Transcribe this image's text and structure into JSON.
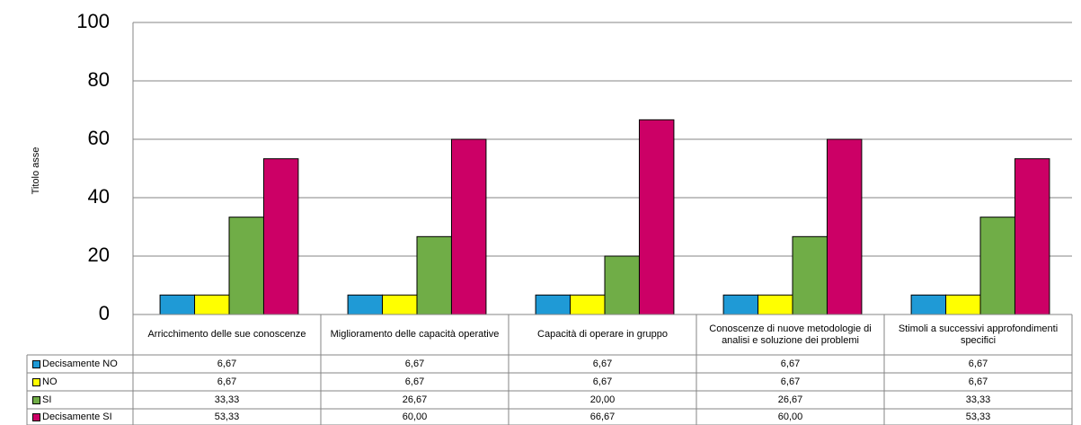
{
  "chart_data": {
    "type": "bar",
    "y_label": "Titolo asse",
    "categories": [
      "Arricchimento delle sue conoscenze",
      "Miglioramento delle capacità operative",
      "Capacità di operare in gruppo",
      "Conoscenze di nuove metodologie di analisi e soluzione dei problemi",
      "Stimoli a successivi approfondimenti specifici"
    ],
    "series": [
      {
        "name": "Decisamente NO",
        "color": "#1f9ad6",
        "values": [
          6.67,
          6.67,
          6.67,
          6.67,
          6.67
        ],
        "value_labels": [
          "6,67",
          "6,67",
          "6,67",
          "6,67",
          "6,67"
        ]
      },
      {
        "name": "NO",
        "color": "#ffff00",
        "values": [
          6.67,
          6.67,
          6.67,
          6.67,
          6.67
        ],
        "value_labels": [
          "6,67",
          "6,67",
          "6,67",
          "6,67",
          "6,67"
        ]
      },
      {
        "name": "SI",
        "color": "#70ad47",
        "values": [
          33.33,
          26.67,
          20.0,
          26.67,
          33.33
        ],
        "value_labels": [
          "33,33",
          "26,67",
          "20,00",
          "26,67",
          "33,33"
        ]
      },
      {
        "name": "Decisamente SI",
        "color": "#cc0066",
        "values": [
          53.33,
          60.0,
          66.67,
          60.0,
          53.33
        ],
        "value_labels": [
          "53,33",
          "60,00",
          "66,67",
          "60,00",
          "53,33"
        ]
      }
    ],
    "ylim": [
      0,
      100
    ],
    "yticks": [
      0,
      20,
      40,
      60,
      80,
      100
    ],
    "grid": true
  }
}
